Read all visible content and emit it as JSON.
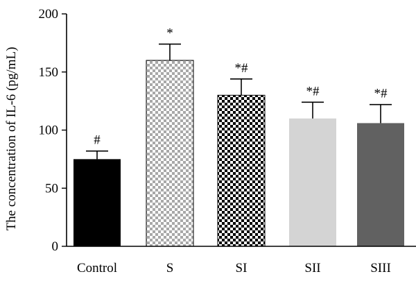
{
  "chart_data": {
    "type": "bar",
    "title": "",
    "xlabel": "",
    "ylabel": "The concentration of IL-6 (pg/mL)",
    "ylim": [
      0,
      200
    ],
    "yticks": [
      0,
      50,
      100,
      150,
      200
    ],
    "grid": false,
    "legend": "none",
    "categories": [
      "Control",
      "S",
      "SI",
      "SII",
      "SIII"
    ],
    "values": [
      75,
      160,
      130,
      110,
      106
    ],
    "errors": [
      7,
      14,
      14,
      14,
      16
    ],
    "annotations": [
      "#",
      "*",
      "*#",
      "*#",
      "*#"
    ],
    "patterns": [
      "solid-black",
      "checker-light",
      "checker-dark",
      "solid-light-gray",
      "solid-dark-gray"
    ],
    "colors": [
      "#000000",
      "#a8a8a8",
      "#000000",
      "#d4d4d4",
      "#616161"
    ]
  }
}
